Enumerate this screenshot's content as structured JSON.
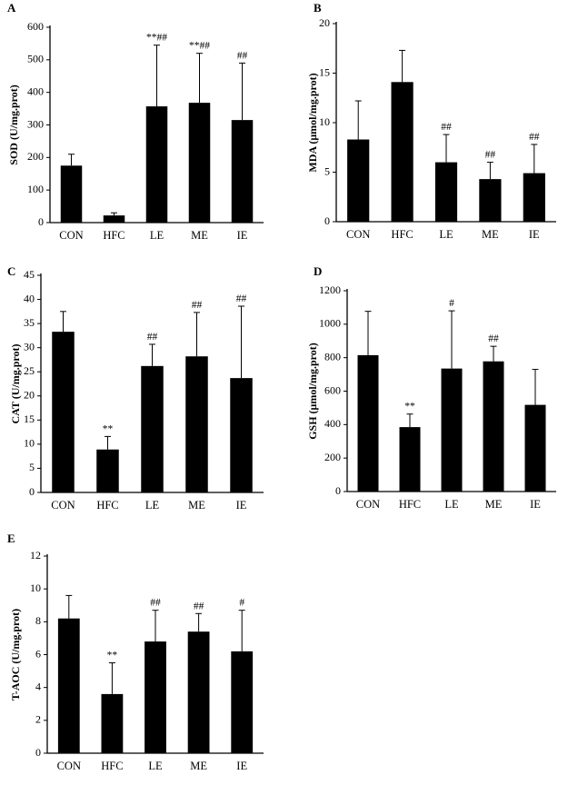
{
  "colors": {
    "bar": "#000000",
    "axis": "#000000",
    "background": "#ffffff"
  },
  "chart_data": [
    {
      "panel": "A",
      "type": "bar",
      "categories": [
        "CON",
        "HFC",
        "LE",
        "ME",
        "IE"
      ],
      "values": [
        175,
        22,
        357,
        368,
        315
      ],
      "errors": [
        35,
        8,
        188,
        152,
        175
      ],
      "annotations": [
        "",
        "",
        "**##",
        "**##",
        "##"
      ],
      "ylabel": "SOD (U/mg.prot)",
      "ylim": [
        0,
        600
      ],
      "yticks": [
        "0",
        "100",
        "200",
        "300",
        "400",
        "500",
        "600"
      ],
      "grid": false,
      "legend": "none"
    },
    {
      "panel": "B",
      "type": "bar",
      "categories": [
        "CON",
        "HFC",
        "LE",
        "ME",
        "IE"
      ],
      "values": [
        8.3,
        14.1,
        6.0,
        4.3,
        4.9
      ],
      "errors": [
        3.9,
        3.2,
        2.8,
        1.7,
        2.9
      ],
      "annotations": [
        "",
        "",
        "##",
        "##",
        "##"
      ],
      "ylabel": "MDA (μmol/mg.prot)",
      "ylim": [
        0,
        20
      ],
      "yticks": [
        "0",
        "5",
        "10",
        "15",
        "20"
      ],
      "grid": false,
      "legend": "none"
    },
    {
      "panel": "C",
      "type": "bar",
      "categories": [
        "CON",
        "HFC",
        "LE",
        "ME",
        "IE"
      ],
      "values": [
        33.3,
        8.9,
        26.2,
        28.2,
        23.7
      ],
      "errors": [
        4.2,
        2.7,
        4.5,
        9.1,
        14.9
      ],
      "annotations": [
        "",
        "**",
        "##",
        "##",
        "##"
      ],
      "ylabel": "CAT (U/mg.prot)",
      "ylim": [
        0,
        45
      ],
      "yticks": [
        "0",
        "5",
        "10",
        "15",
        "20",
        "25",
        "30",
        "35",
        "40",
        "45"
      ],
      "grid": false,
      "legend": "none"
    },
    {
      "panel": "D",
      "type": "bar",
      "categories": [
        "CON",
        "HFC",
        "LE",
        "ME",
        "IE"
      ],
      "values": [
        815,
        385,
        735,
        778,
        518
      ],
      "errors": [
        262,
        78,
        345,
        90,
        212
      ],
      "annotations": [
        "",
        "**",
        "#",
        "##",
        ""
      ],
      "ylabel": "GSH (μmol/mg.prot)",
      "ylim": [
        0,
        1200
      ],
      "yticks": [
        "0",
        "200",
        "400",
        "600",
        "800",
        "1000",
        "1200"
      ],
      "grid": false,
      "legend": "none"
    },
    {
      "panel": "E",
      "type": "bar",
      "categories": [
        "CON",
        "HFC",
        "LE",
        "ME",
        "IE"
      ],
      "values": [
        8.2,
        3.6,
        6.8,
        7.4,
        6.2
      ],
      "errors": [
        1.4,
        1.9,
        1.9,
        1.1,
        2.5
      ],
      "annotations": [
        "",
        "**",
        "##",
        "##",
        "#"
      ],
      "ylabel": "T-AOC (U/mg.prot)",
      "ylim": [
        0,
        12
      ],
      "yticks": [
        "0",
        "2",
        "4",
        "6",
        "8",
        "10",
        "12"
      ],
      "grid": false,
      "legend": "none"
    }
  ]
}
